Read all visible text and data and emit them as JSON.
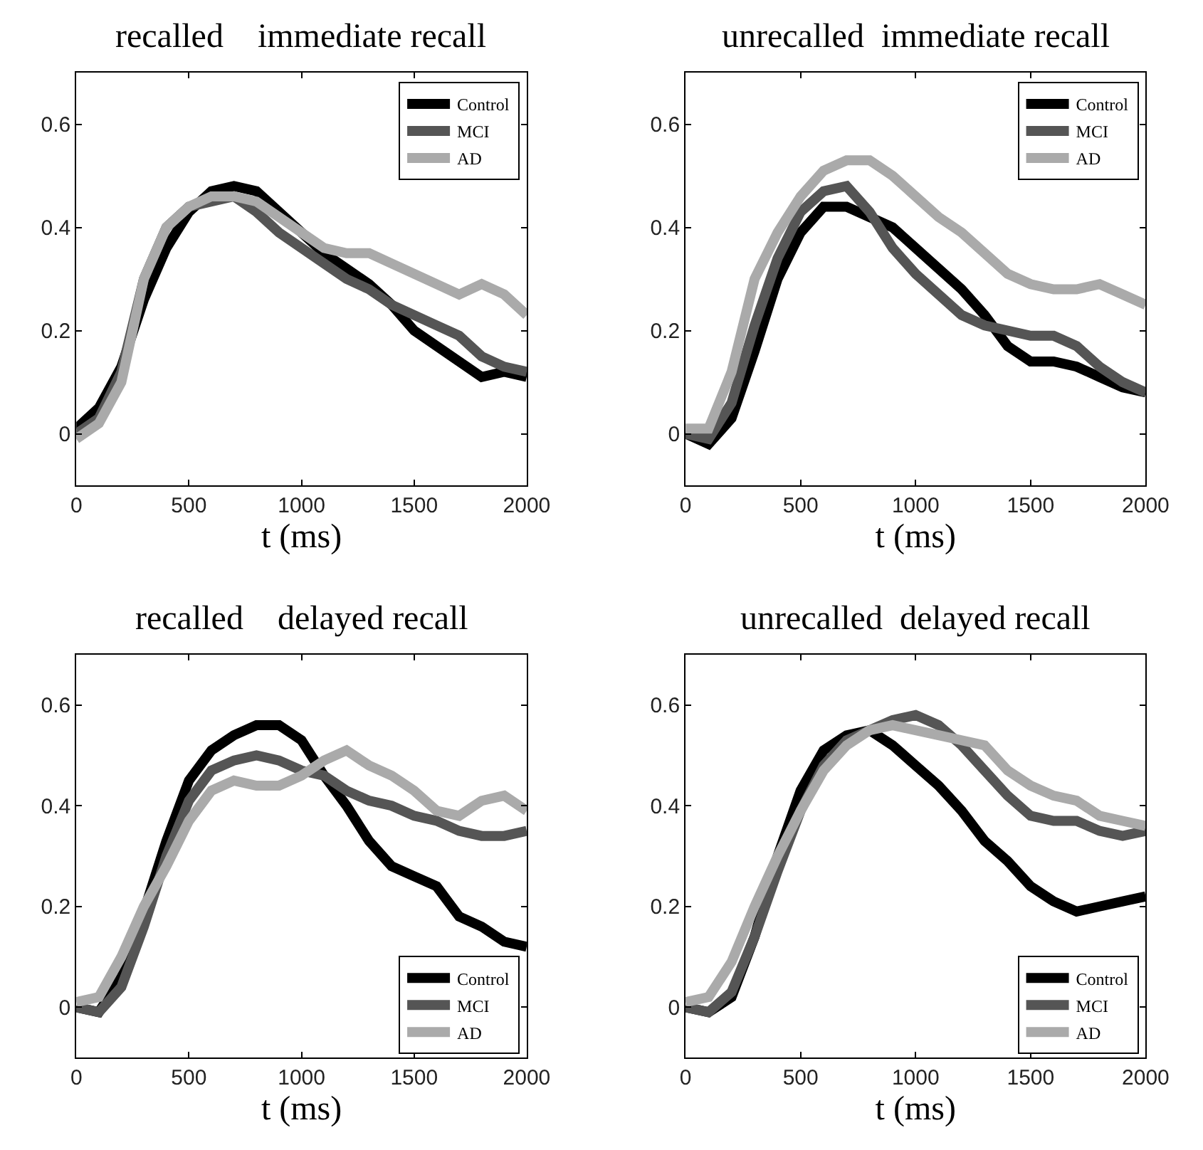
{
  "chart_data": [
    {
      "type": "line",
      "title": "recalled    immediate recall",
      "xlabel": "t (ms)",
      "xlim": [
        0,
        2000
      ],
      "ylim": [
        -0.1,
        0.7
      ],
      "xticks": [
        0,
        500,
        1000,
        1500,
        2000
      ],
      "yticks": [
        0,
        0.2,
        0.4,
        0.6
      ],
      "legend": "top right",
      "x": [
        0,
        100,
        200,
        300,
        400,
        500,
        600,
        700,
        800,
        900,
        1000,
        1100,
        1200,
        1300,
        1400,
        1500,
        1600,
        1700,
        1800,
        1900,
        2000
      ],
      "series": [
        {
          "name": "Control",
          "color": "#000000",
          "values": [
            0.01,
            0.05,
            0.13,
            0.26,
            0.36,
            0.43,
            0.47,
            0.48,
            0.47,
            0.43,
            0.39,
            0.35,
            0.32,
            0.29,
            0.25,
            0.2,
            0.17,
            0.14,
            0.11,
            0.12,
            0.11
          ]
        },
        {
          "name": "MCI",
          "color": "#555555",
          "values": [
            0.0,
            0.03,
            0.12,
            0.3,
            0.4,
            0.44,
            0.45,
            0.46,
            0.43,
            0.39,
            0.36,
            0.33,
            0.3,
            0.28,
            0.25,
            0.23,
            0.21,
            0.19,
            0.15,
            0.13,
            0.12
          ]
        },
        {
          "name": "AD",
          "color": "#aaaaaa",
          "values": [
            -0.01,
            0.02,
            0.1,
            0.3,
            0.4,
            0.44,
            0.46,
            0.46,
            0.45,
            0.42,
            0.39,
            0.36,
            0.35,
            0.35,
            0.33,
            0.31,
            0.29,
            0.27,
            0.29,
            0.27,
            0.23
          ]
        }
      ]
    },
    {
      "type": "line",
      "title": "unrecalled  immediate recall",
      "xlabel": "t (ms)",
      "xlim": [
        0,
        2000
      ],
      "ylim": [
        -0.1,
        0.7
      ],
      "xticks": [
        0,
        500,
        1000,
        1500,
        2000
      ],
      "yticks": [
        0,
        0.2,
        0.4,
        0.6
      ],
      "legend": "top right",
      "x": [
        0,
        100,
        200,
        300,
        400,
        500,
        600,
        700,
        800,
        900,
        1000,
        1100,
        1200,
        1300,
        1400,
        1500,
        1600,
        1700,
        1800,
        1900,
        2000
      ],
      "series": [
        {
          "name": "Control",
          "color": "#000000",
          "values": [
            0,
            -0.02,
            0.03,
            0.16,
            0.3,
            0.39,
            0.44,
            0.44,
            0.42,
            0.4,
            0.36,
            0.32,
            0.28,
            0.23,
            0.17,
            0.14,
            0.14,
            0.13,
            0.11,
            0.09,
            0.08
          ]
        },
        {
          "name": "MCI",
          "color": "#555555",
          "values": [
            0,
            -0.01,
            0.06,
            0.21,
            0.34,
            0.43,
            0.47,
            0.48,
            0.43,
            0.36,
            0.31,
            0.27,
            0.23,
            0.21,
            0.2,
            0.19,
            0.19,
            0.17,
            0.13,
            0.1,
            0.08
          ]
        },
        {
          "name": "AD",
          "color": "#aaaaaa",
          "values": [
            0.01,
            0.01,
            0.12,
            0.3,
            0.39,
            0.46,
            0.51,
            0.53,
            0.53,
            0.5,
            0.46,
            0.42,
            0.39,
            0.35,
            0.31,
            0.29,
            0.28,
            0.28,
            0.29,
            0.27,
            0.25
          ]
        }
      ]
    },
    {
      "type": "line",
      "title": "recalled    delayed recall",
      "xlabel": "t (ms)",
      "xlim": [
        0,
        2000
      ],
      "ylim": [
        -0.1,
        0.7
      ],
      "xticks": [
        0,
        500,
        1000,
        1500,
        2000
      ],
      "yticks": [
        0,
        0.2,
        0.4,
        0.6
      ],
      "legend": "bottom right",
      "x": [
        0,
        100,
        200,
        300,
        400,
        500,
        600,
        700,
        800,
        900,
        1000,
        1100,
        1200,
        1300,
        1400,
        1500,
        1600,
        1700,
        1800,
        1900,
        2000
      ],
      "series": [
        {
          "name": "Control",
          "color": "#000000",
          "values": [
            0,
            -0.01,
            0.06,
            0.19,
            0.33,
            0.45,
            0.51,
            0.54,
            0.56,
            0.56,
            0.53,
            0.46,
            0.4,
            0.33,
            0.28,
            0.26,
            0.24,
            0.18,
            0.16,
            0.13,
            0.12
          ]
        },
        {
          "name": "MCI",
          "color": "#555555",
          "values": [
            0,
            -0.01,
            0.04,
            0.16,
            0.3,
            0.41,
            0.47,
            0.49,
            0.5,
            0.49,
            0.47,
            0.46,
            0.43,
            0.41,
            0.4,
            0.38,
            0.37,
            0.35,
            0.34,
            0.34,
            0.35
          ]
        },
        {
          "name": "AD",
          "color": "#aaaaaa",
          "values": [
            0.01,
            0.02,
            0.1,
            0.2,
            0.28,
            0.37,
            0.43,
            0.45,
            0.44,
            0.44,
            0.46,
            0.49,
            0.51,
            0.48,
            0.46,
            0.43,
            0.39,
            0.38,
            0.41,
            0.42,
            0.39
          ]
        }
      ]
    },
    {
      "type": "line",
      "title": "unrecalled  delayed recall",
      "xlabel": "t (ms)",
      "xlim": [
        0,
        2000
      ],
      "ylim": [
        -0.1,
        0.7
      ],
      "xticks": [
        0,
        500,
        1000,
        1500,
        2000
      ],
      "yticks": [
        0,
        0.2,
        0.4,
        0.6
      ],
      "legend": "bottom right",
      "x": [
        0,
        100,
        200,
        300,
        400,
        500,
        600,
        700,
        800,
        900,
        1000,
        1100,
        1200,
        1300,
        1400,
        1500,
        1600,
        1700,
        1800,
        1900,
        2000
      ],
      "series": [
        {
          "name": "Control",
          "color": "#000000",
          "values": [
            0,
            -0.01,
            0.02,
            0.14,
            0.3,
            0.43,
            0.51,
            0.54,
            0.55,
            0.52,
            0.48,
            0.44,
            0.39,
            0.33,
            0.29,
            0.24,
            0.21,
            0.19,
            0.2,
            0.21,
            0.22
          ]
        },
        {
          "name": "MCI",
          "color": "#555555",
          "values": [
            0,
            -0.01,
            0.03,
            0.14,
            0.27,
            0.39,
            0.48,
            0.53,
            0.55,
            0.57,
            0.58,
            0.56,
            0.52,
            0.47,
            0.42,
            0.38,
            0.37,
            0.37,
            0.35,
            0.34,
            0.35
          ]
        },
        {
          "name": "AD",
          "color": "#aaaaaa",
          "values": [
            0.01,
            0.02,
            0.09,
            0.2,
            0.3,
            0.39,
            0.47,
            0.52,
            0.55,
            0.56,
            0.55,
            0.54,
            0.53,
            0.52,
            0.47,
            0.44,
            0.42,
            0.41,
            0.38,
            0.37,
            0.36
          ]
        }
      ]
    }
  ]
}
